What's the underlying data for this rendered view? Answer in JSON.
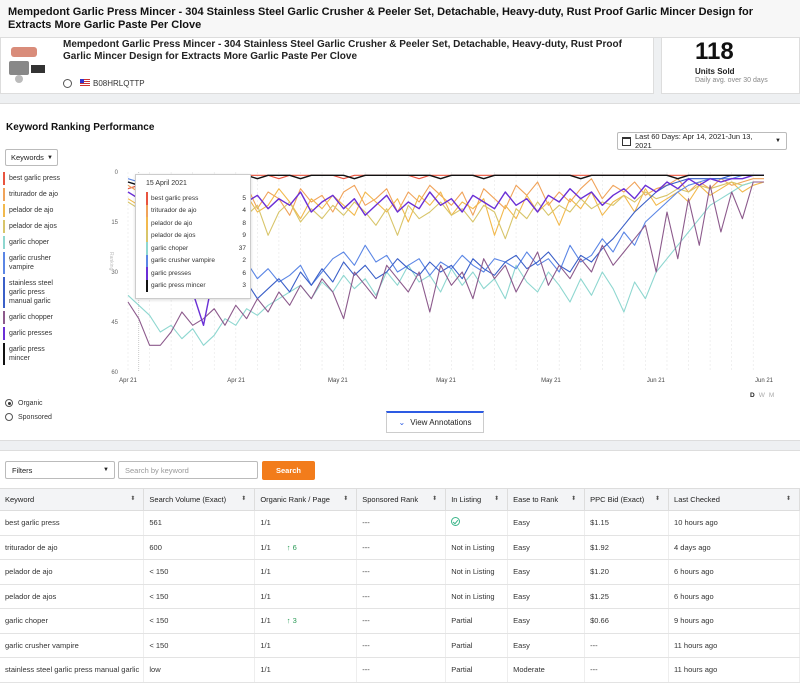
{
  "header": {
    "title": "Mempedont Garlic Press Mincer - 304 Stainless Steel Garlic Crusher & Peeler Set, Detachable, Heavy-duty, Rust Proof Garlic Mincer Design for Extracts More Garlic Paste Per Clove"
  },
  "product": {
    "title": "Mempedont Garlic Press Mincer - 304 Stainless Steel Garlic Crusher & Peeler Set, Detachable, Heavy-duty, Rust Proof Garlic Mincer Design for Extracts More Garlic Paste Per Clove",
    "asin": "B08HRLQTTP"
  },
  "units": {
    "value": "118",
    "label": "Units Sold",
    "sub": "Daily avg. over 30 days"
  },
  "ranking": {
    "title": "Keyword Ranking Performance",
    "date_range": "Last 60 Days: Apr 14, 2021-Jun 13, 2021",
    "keywords_dropdown": "Keywords",
    "legend": [
      {
        "label": "best garlic press",
        "color": "#e8543f"
      },
      {
        "label": "triturador de ajo",
        "color": "#f0a35a"
      },
      {
        "label": "pelador de ajo",
        "color": "#f2b94d"
      },
      {
        "label": "pelador de ajos",
        "color": "#d8c56a"
      },
      {
        "label": "garlic choper",
        "color": "#8ed7d0"
      },
      {
        "label": "garlic crusher vampire",
        "color": "#5b86e5"
      },
      {
        "label": "stainless steel garlic press manual garlic",
        "color": "#3a5fc8"
      },
      {
        "label": "garlic chopper",
        "color": "#8c5a8c"
      },
      {
        "label": "garlic presses",
        "color": "#6a2fd6"
      },
      {
        "label": "garlic press mincer",
        "color": "#111111"
      }
    ],
    "radio": {
      "organic": "Organic",
      "sponsored": "Sponsored"
    },
    "view_annotations": "View Annotations",
    "period": {
      "d": "D",
      "w": "W",
      "m": "M"
    },
    "tooltip": {
      "date": "15 April 2021",
      "rows": [
        {
          "label": "best garlic press",
          "value": "5",
          "color": "#e8543f"
        },
        {
          "label": "triturador de ajo",
          "value": "4",
          "color": "#f0a35a"
        },
        {
          "label": "pelador de ajo",
          "value": "8",
          "color": "#f2b94d"
        },
        {
          "label": "pelador de ajos",
          "value": "9",
          "color": "#d8c56a"
        },
        {
          "label": "garlic choper",
          "value": "37",
          "color": "#8ed7d0"
        },
        {
          "label": "garlic crusher vampire",
          "value": "2",
          "color": "#5b86e5"
        },
        {
          "label": "garlic presses",
          "value": "6",
          "color": "#6a2fd6"
        },
        {
          "label": "garlic press mincer",
          "value": "3",
          "color": "#111111"
        }
      ]
    }
  },
  "chart_data": {
    "type": "line",
    "ylim": [
      60,
      0
    ],
    "yticks": [
      "0",
      "15",
      "30",
      "45",
      "60"
    ],
    "ylabel": "Ranking",
    "xticks": [
      "Apr 21",
      "Apr 21",
      "May 21",
      "May 21",
      "May 21",
      "Jun 21",
      "Jun 21"
    ],
    "series": [
      {
        "name": "best garlic press",
        "color": "#e8543f",
        "values": [
          5,
          4,
          3,
          2,
          2,
          2,
          1,
          1,
          1,
          2,
          1,
          1,
          1,
          1,
          2,
          1,
          1,
          1,
          1,
          1,
          2,
          1,
          1,
          1,
          1,
          1,
          1,
          2,
          1,
          1,
          1,
          1,
          1,
          1,
          1,
          1,
          1,
          1,
          1,
          1,
          1,
          1,
          1,
          1,
          1,
          1,
          1,
          1,
          1,
          1,
          1,
          1,
          1,
          1,
          1,
          1,
          1,
          1,
          1,
          1
        ]
      },
      {
        "name": "triturador de ajo",
        "color": "#f0a35a",
        "values": [
          4,
          6,
          9,
          12,
          8,
          6,
          10,
          5,
          12,
          7,
          9,
          4,
          11,
          6,
          8,
          13,
          5,
          9,
          7,
          12,
          6,
          4,
          10,
          8,
          5,
          12,
          6,
          9,
          4,
          7,
          10,
          6,
          13,
          5,
          8,
          11,
          4,
          7,
          3,
          10,
          6,
          9,
          5,
          2,
          8,
          4,
          6,
          3,
          7,
          5,
          4,
          2,
          6,
          3,
          5,
          2,
          4,
          3,
          2,
          2
        ]
      },
      {
        "name": "pelador de ajo",
        "color": "#f2b94d",
        "values": [
          8,
          10,
          7,
          12,
          9,
          14,
          8,
          11,
          6,
          13,
          9,
          7,
          12,
          10,
          5,
          9,
          14,
          8,
          11,
          7,
          10,
          13,
          6,
          9,
          12,
          8,
          15,
          7,
          10,
          6,
          13,
          9,
          11,
          8,
          19,
          10,
          14,
          7,
          12,
          9,
          16,
          8,
          11,
          6,
          13,
          9,
          7,
          12,
          5,
          10,
          8,
          6,
          9,
          4,
          7,
          5,
          3,
          6,
          4,
          3
        ]
      },
      {
        "name": "pelador de ajos",
        "color": "#d8c56a",
        "values": [
          9,
          11,
          15,
          10,
          18,
          12,
          9,
          14,
          11,
          16,
          8,
          13,
          10,
          19,
          12,
          9,
          15,
          11,
          14,
          10,
          13,
          9,
          12,
          16,
          11,
          19,
          10,
          14,
          12,
          9,
          13,
          11,
          15,
          10,
          12,
          20,
          11,
          14,
          9,
          13,
          10,
          12,
          8,
          11,
          9,
          10,
          7,
          9,
          6,
          8,
          7,
          5,
          6,
          4,
          5,
          4,
          3,
          4,
          3,
          3
        ]
      },
      {
        "name": "garlic choper",
        "color": "#8ed7d0",
        "values": [
          37,
          40,
          43,
          48,
          46,
          50,
          47,
          52,
          49,
          44,
          46,
          41,
          43,
          40,
          38,
          36,
          34,
          38,
          33,
          36,
          31,
          35,
          32,
          37,
          30,
          34,
          28,
          33,
          31,
          36,
          29,
          34,
          30,
          35,
          32,
          38,
          28,
          33,
          36,
          30,
          34,
          39,
          32,
          37,
          30,
          35,
          42,
          33,
          38,
          30,
          26,
          22,
          18,
          14,
          10,
          8,
          6,
          4,
          3,
          3
        ]
      },
      {
        "name": "garlic crusher vampire",
        "color": "#5b86e5",
        "values": [
          2,
          3,
          5,
          4,
          6,
          12,
          18,
          24,
          28,
          26,
          30,
          27,
          32,
          29,
          33,
          31,
          28,
          34,
          30,
          26,
          24,
          28,
          22,
          27,
          25,
          30,
          28,
          26,
          31,
          27,
          29,
          25,
          28,
          30,
          26,
          27,
          29,
          24,
          28,
          26,
          30,
          22,
          27,
          25,
          20,
          24,
          18,
          22,
          15,
          12,
          9,
          6,
          4,
          3,
          2,
          2,
          2,
          1,
          1,
          1
        ]
      },
      {
        "name": "stainless steel garlic press manual garlic",
        "color": "#3a5fc8",
        "values": [
          3,
          4,
          6,
          10,
          16,
          22,
          28,
          32,
          34,
          30,
          36,
          33,
          38,
          35,
          32,
          36,
          30,
          34,
          29,
          33,
          27,
          31,
          28,
          32,
          30,
          26,
          29,
          31,
          27,
          30,
          28,
          32,
          26,
          29,
          31,
          27,
          25,
          29,
          27,
          24,
          28,
          30,
          25,
          27,
          23,
          20,
          16,
          12,
          9,
          6,
          4,
          3,
          2,
          2,
          2,
          2,
          1,
          1,
          1,
          1
        ]
      },
      {
        "name": "garlic chopper",
        "color": "#8c5a8c",
        "values": [
          39,
          44,
          52,
          52,
          48,
          42,
          46,
          44,
          41,
          46,
          40,
          44,
          38,
          42,
          36,
          40,
          34,
          38,
          32,
          36,
          44,
          30,
          34,
          38,
          28,
          32,
          36,
          30,
          42,
          28,
          34,
          30,
          38,
          26,
          32,
          28,
          36,
          30,
          24,
          34,
          28,
          32,
          26,
          30,
          22,
          28,
          24,
          20,
          16,
          30,
          12,
          26,
          8,
          22,
          4,
          18,
          6,
          14,
          3,
          3
        ]
      },
      {
        "name": "garlic presses",
        "color": "#6a2fd6",
        "values": [
          6,
          8,
          10,
          14,
          20,
          28,
          36,
          46,
          30,
          10,
          8,
          9,
          7,
          11,
          8,
          10,
          6,
          12,
          9,
          7,
          11,
          8,
          13,
          10,
          7,
          12,
          9,
          11,
          6,
          10,
          8,
          12,
          7,
          9,
          11,
          6,
          10,
          8,
          12,
          7,
          9,
          5,
          8,
          6,
          10,
          7,
          5,
          8,
          4,
          6,
          3,
          5,
          2,
          4,
          2,
          3,
          2,
          2,
          1,
          1
        ]
      },
      {
        "name": "garlic press mincer",
        "color": "#111111",
        "values": [
          3,
          4,
          5,
          3,
          6,
          4,
          2,
          3,
          1,
          2,
          1,
          1,
          2,
          1,
          1,
          1,
          2,
          1,
          1,
          1,
          1,
          2,
          1,
          1,
          1,
          1,
          1,
          1,
          1,
          2,
          1,
          1,
          1,
          2,
          1,
          1,
          1,
          1,
          1,
          1,
          1,
          1,
          2,
          1,
          1,
          1,
          1,
          1,
          1,
          1,
          1,
          2,
          1,
          1,
          1,
          1,
          1,
          1,
          1,
          1
        ]
      }
    ]
  },
  "filters": {
    "label": "Filters",
    "search_placeholder": "Search by keyword",
    "search_button": "Search"
  },
  "table": {
    "headers": [
      "Keyword",
      "Search Volume (Exact)",
      "Organic Rank / Page",
      "Sponsored Rank",
      "In Listing",
      "Ease to Rank",
      "PPC Bid (Exact)",
      "Last Checked"
    ],
    "rows": [
      {
        "keyword": "best garlic press",
        "volume": "561",
        "organic": "1/1",
        "up": "",
        "sponsored": "---",
        "listing": "",
        "listing_icon": true,
        "ease": "Easy",
        "ppc": "$1.15",
        "checked": "10 hours ago"
      },
      {
        "keyword": "triturador de ajo",
        "volume": "600",
        "organic": "1/1",
        "up": "↑ 6",
        "sponsored": "---",
        "listing": "Not in Listing",
        "listing_icon": false,
        "ease": "Easy",
        "ppc": "$1.92",
        "checked": "4 days ago"
      },
      {
        "keyword": "pelador de ajo",
        "volume": "< 150",
        "organic": "1/1",
        "up": "",
        "sponsored": "---",
        "listing": "Not in Listing",
        "listing_icon": false,
        "ease": "Easy",
        "ppc": "$1.20",
        "checked": "6 hours ago"
      },
      {
        "keyword": "pelador de ajos",
        "volume": "< 150",
        "organic": "1/1",
        "up": "",
        "sponsored": "---",
        "listing": "Not in Listing",
        "listing_icon": false,
        "ease": "Easy",
        "ppc": "$1.25",
        "checked": "6 hours ago"
      },
      {
        "keyword": "garlic choper",
        "volume": "< 150",
        "organic": "1/1",
        "up": "↑ 3",
        "sponsored": "---",
        "listing": "Partial",
        "listing_icon": false,
        "ease": "Easy",
        "ppc": "$0.66",
        "checked": "9 hours ago"
      },
      {
        "keyword": "garlic crusher vampire",
        "volume": "< 150",
        "organic": "1/1",
        "up": "",
        "sponsored": "---",
        "listing": "Partial",
        "listing_icon": false,
        "ease": "Easy",
        "ppc": "---",
        "checked": "11 hours ago"
      },
      {
        "keyword": "stainless steel garlic press manual garlic",
        "volume": "low",
        "organic": "1/1",
        "up": "",
        "sponsored": "---",
        "listing": "Partial",
        "listing_icon": false,
        "ease": "Moderate",
        "ppc": "---",
        "checked": "11 hours ago"
      }
    ]
  }
}
